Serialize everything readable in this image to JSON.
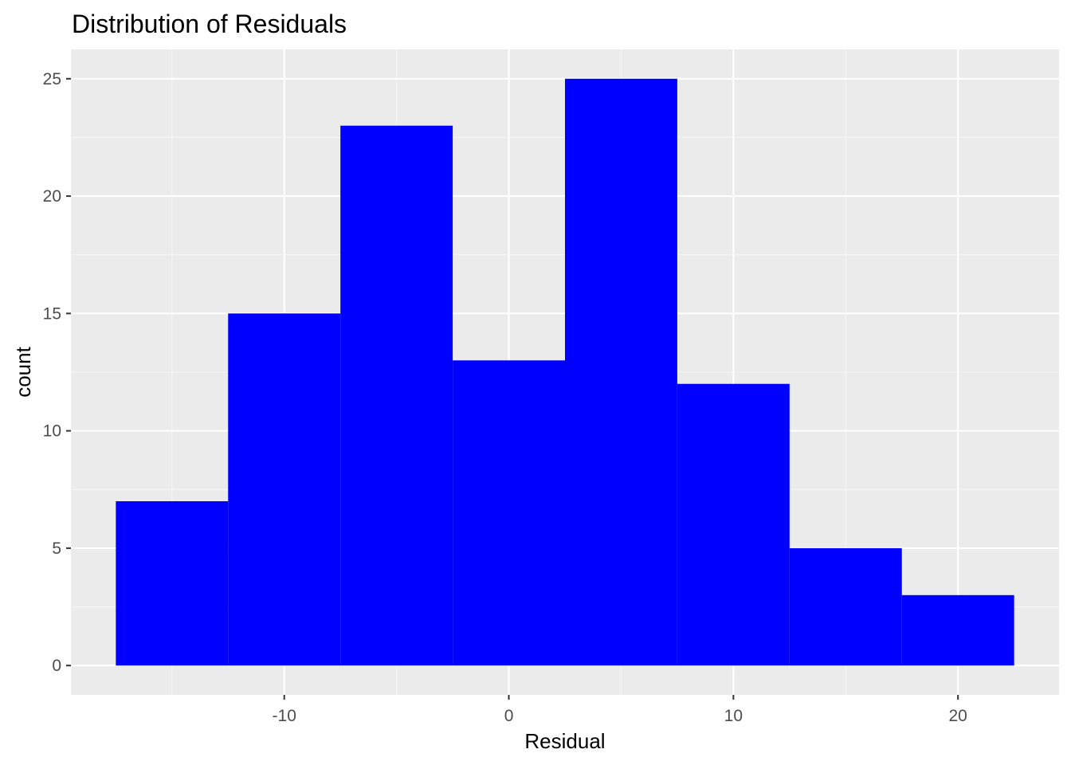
{
  "chart_data": {
    "type": "bar",
    "title": "Distribution of Residuals",
    "xlabel": "Residual",
    "ylabel": "count",
    "bin_width": 5,
    "bins": [
      {
        "x0": -17.5,
        "x1": -12.5,
        "count": 7
      },
      {
        "x0": -12.5,
        "x1": -7.5,
        "count": 15
      },
      {
        "x0": -7.5,
        "x1": -2.5,
        "count": 23
      },
      {
        "x0": -2.5,
        "x1": 2.5,
        "count": 13
      },
      {
        "x0": 2.5,
        "x1": 7.5,
        "count": 25
      },
      {
        "x0": 7.5,
        "x1": 12.5,
        "count": 12
      },
      {
        "x0": 12.5,
        "x1": 17.5,
        "count": 5
      },
      {
        "x0": 17.5,
        "x1": 22.5,
        "count": 3
      }
    ],
    "x_ticks": [
      -10,
      0,
      10,
      20
    ],
    "x_tick_labels": [
      "-10",
      "0",
      "10",
      "20"
    ],
    "y_ticks": [
      0,
      5,
      10,
      15,
      20,
      25
    ],
    "y_tick_labels": [
      "0",
      "5",
      "10",
      "15",
      "20",
      "25"
    ],
    "xlim": [
      -19.5,
      24.5
    ],
    "ylim": [
      -1.25,
      26.25
    ],
    "grid": true,
    "legend": "none",
    "colors": {
      "bar_fill": "#0000ff",
      "panel_background": "#ebebeb",
      "grid_major": "#ffffff",
      "grid_minor": "#f5f5f5"
    }
  }
}
